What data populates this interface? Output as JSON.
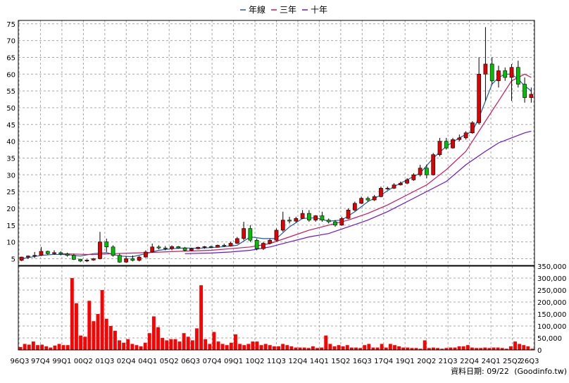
{
  "chart_data": [
    {
      "type": "line",
      "panel": "price-candlestick",
      "legend": [
        {
          "name": "年線",
          "color": "#1e5aa8"
        },
        {
          "name": "三年",
          "color": "#d0145a"
        },
        {
          "name": "十年",
          "color": "#6a14d8"
        }
      ],
      "ytick_labels": [
        "5",
        "10",
        "15",
        "20",
        "25",
        "30",
        "35",
        "40",
        "45",
        "50",
        "55",
        "60",
        "65",
        "70",
        "75"
      ],
      "ylim": [
        3,
        76
      ],
      "xtick_labels": [
        "96Q3",
        "97Q4",
        "99Q1",
        "00Q2",
        "01Q3",
        "02Q4",
        "04Q1",
        "05Q2",
        "06Q3",
        "07Q4",
        "09Q1",
        "10Q2",
        "11Q3",
        "12Q4",
        "14Q1",
        "15Q2",
        "16Q3",
        "17Q4",
        "19Q1",
        "20Q2",
        "21Q3",
        "22Q4",
        "24Q1",
        "25Q2",
        "26Q3"
      ],
      "grid": true,
      "candle_colors": {
        "up": "#e00000",
        "down": "#00c000"
      },
      "candles": [
        [
          4.5,
          5.6,
          4.3,
          5.5
        ],
        [
          5.5,
          6.0,
          5.0,
          5.8
        ],
        [
          5.8,
          7.0,
          5.2,
          6.0
        ],
        [
          6.0,
          8.5,
          5.8,
          7.2
        ],
        [
          7.2,
          7.4,
          6.2,
          6.5
        ],
        [
          6.5,
          7.5,
          6.2,
          6.8
        ],
        [
          6.8,
          7.2,
          6.0,
          6.4
        ],
        [
          6.4,
          6.8,
          5.6,
          6.0
        ],
        [
          6.0,
          6.5,
          4.6,
          4.8
        ],
        [
          4.8,
          5.0,
          4.0,
          4.3
        ],
        [
          4.3,
          4.8,
          4.0,
          4.6
        ],
        [
          4.6,
          5.2,
          4.4,
          5.0
        ],
        [
          5.0,
          13.0,
          4.8,
          10.0
        ],
        [
          10.0,
          11.0,
          7.0,
          8.5
        ],
        [
          8.5,
          9.0,
          5.6,
          6.0
        ],
        [
          6.0,
          6.5,
          3.8,
          4.0
        ],
        [
          4.0,
          5.8,
          3.8,
          5.0
        ],
        [
          5.0,
          6.0,
          4.2,
          4.5
        ],
        [
          4.5,
          5.8,
          4.2,
          5.5
        ],
        [
          5.5,
          7.5,
          5.3,
          7.0
        ],
        [
          7.0,
          9.5,
          6.8,
          8.5
        ],
        [
          8.5,
          9.0,
          7.8,
          8.2
        ],
        [
          8.2,
          8.8,
          7.5,
          8.0
        ],
        [
          8.0,
          9.0,
          7.5,
          8.6
        ],
        [
          8.6,
          8.8,
          8.0,
          8.2
        ],
        [
          8.2,
          8.5,
          7.2,
          7.5
        ],
        [
          7.5,
          8.2,
          7.3,
          8.0
        ],
        [
          8.0,
          8.6,
          7.8,
          8.4
        ],
        [
          8.4,
          8.8,
          8.0,
          8.6
        ],
        [
          8.6,
          8.9,
          8.2,
          8.4
        ],
        [
          8.4,
          9.2,
          8.3,
          9.0
        ],
        [
          9.0,
          9.5,
          8.5,
          8.8
        ],
        [
          8.8,
          10.0,
          8.6,
          9.6
        ],
        [
          9.6,
          11.5,
          9.4,
          11.0
        ],
        [
          11.0,
          16.0,
          10.5,
          14.0
        ],
        [
          14.0,
          15.0,
          10.0,
          10.5
        ],
        [
          10.5,
          11.0,
          7.5,
          8.0
        ],
        [
          8.0,
          10.0,
          7.6,
          9.6
        ],
        [
          9.6,
          11.0,
          9.3,
          10.5
        ],
        [
          10.5,
          14.0,
          10.2,
          13.5
        ],
        [
          13.5,
          19.0,
          13.0,
          16.5
        ],
        [
          16.5,
          17.5,
          15.5,
          16.2
        ],
        [
          16.2,
          17.5,
          15.8,
          17.0
        ],
        [
          17.0,
          19.5,
          16.8,
          18.5
        ],
        [
          18.5,
          19.5,
          16.0,
          16.5
        ],
        [
          16.5,
          18.0,
          16.0,
          17.8
        ],
        [
          17.8,
          19.0,
          16.0,
          16.5
        ],
        [
          16.5,
          17.0,
          15.5,
          16.0
        ],
        [
          16.0,
          16.5,
          14.5,
          15.0
        ],
        [
          15.0,
          17.5,
          14.8,
          17.0
        ],
        [
          17.0,
          20.0,
          16.8,
          19.5
        ],
        [
          19.5,
          22.0,
          19.2,
          21.5
        ],
        [
          21.5,
          23.5,
          21.3,
          23.0
        ],
        [
          23.0,
          23.5,
          22.0,
          22.5
        ],
        [
          22.5,
          24.0,
          22.2,
          23.5
        ],
        [
          23.5,
          26.5,
          23.3,
          26.0
        ],
        [
          26.0,
          26.5,
          25.5,
          26.0
        ],
        [
          26.0,
          27.5,
          25.8,
          27.0
        ],
        [
          27.0,
          28.0,
          26.8,
          27.5
        ],
        [
          27.5,
          29.0,
          27.2,
          28.5
        ],
        [
          28.5,
          30.5,
          28.2,
          30.0
        ],
        [
          30.0,
          33.0,
          29.5,
          32.0
        ],
        [
          32.0,
          33.0,
          29.0,
          30.0
        ],
        [
          30.0,
          36.5,
          29.8,
          36.0
        ],
        [
          36.0,
          41.0,
          35.5,
          40.0
        ],
        [
          40.0,
          41.0,
          37.5,
          38.0
        ],
        [
          38.0,
          41.0,
          37.8,
          40.5
        ],
        [
          40.5,
          42.0,
          40.0,
          41.0
        ],
        [
          41.0,
          43.0,
          40.5,
          42.5
        ],
        [
          42.5,
          46.0,
          42.2,
          45.5
        ],
        [
          45.5,
          65.0,
          45.0,
          60.0
        ],
        [
          60.0,
          74.0,
          52.0,
          63.0
        ],
        [
          63.0,
          65.0,
          57.0,
          58.0
        ],
        [
          58.0,
          62.5,
          56.0,
          61.0
        ],
        [
          61.0,
          62.0,
          58.0,
          59.0
        ],
        [
          59.0,
          63.0,
          52.0,
          62.0
        ],
        [
          62.0,
          64.0,
          56.0,
          57.0
        ],
        [
          57.0,
          59.0,
          51.5,
          53.0
        ],
        [
          53.0,
          56.0,
          51.5,
          54.0
        ]
      ],
      "series": [
        {
          "name": "年線",
          "color": "#1e5aa8",
          "x": [
            1,
            2,
            4,
            6,
            8,
            10,
            12,
            14,
            16,
            18,
            20,
            22,
            24,
            26,
            28,
            30,
            32,
            34,
            36,
            38,
            40,
            42,
            44,
            46,
            48,
            50,
            52,
            54,
            56,
            58,
            60,
            62,
            64,
            66,
            68,
            70,
            71,
            72,
            73,
            74,
            75,
            76,
            77,
            78,
            79
          ],
          "values": [
            5,
            5.3,
            6,
            6.3,
            6.2,
            5.8,
            6.5,
            6.8,
            5.8,
            5.6,
            6.5,
            7.5,
            8,
            8.2,
            8.1,
            8.3,
            8.6,
            9,
            11.5,
            11,
            11,
            14.5,
            17,
            17.2,
            16.2,
            16.5,
            19,
            22,
            24,
            26.5,
            28.5,
            30.5,
            35,
            38.5,
            41,
            43,
            47,
            52,
            57,
            59,
            60,
            60,
            58.5,
            56.5,
            55
          ]
        },
        {
          "name": "三年",
          "color": "#d0145a",
          "x": [
            7,
            12,
            15,
            20,
            25,
            30,
            33,
            36,
            39,
            42,
            45,
            48,
            51,
            54,
            57,
            60,
            63,
            66,
            69,
            70,
            72,
            74,
            76,
            78,
            79
          ],
          "values": [
            6.5,
            6.2,
            6.5,
            6.8,
            7.2,
            7.5,
            8,
            8.5,
            9.5,
            11.5,
            13.5,
            15,
            16.5,
            18.5,
            21,
            24,
            27,
            31.5,
            37,
            40,
            46,
            52,
            58,
            60,
            59
          ]
        },
        {
          "name": "十年",
          "color": "#6a14d8",
          "x": [
            26,
            30,
            33,
            36,
            39,
            42,
            45,
            48,
            51,
            54,
            57,
            60,
            63,
            66,
            69,
            72,
            74,
            76,
            78,
            79
          ],
          "values": [
            6.5,
            6.7,
            7,
            7.5,
            8.5,
            10,
            11.5,
            12.5,
            14.5,
            16.5,
            19,
            22,
            25,
            28,
            33,
            37,
            39.5,
            41,
            42.5,
            43
          ]
        }
      ]
    },
    {
      "type": "bar",
      "panel": "volume",
      "color": "#ff0000",
      "ytick_labels": [
        "0",
        "50,000",
        "100,000",
        "150,000",
        "200,000",
        "250,000",
        "300,000",
        "350,000"
      ],
      "ylim": [
        0,
        350000
      ],
      "values": [
        12000,
        25000,
        22000,
        35000,
        20000,
        22000,
        15000,
        10000,
        18000,
        25000,
        20000,
        20000,
        300000,
        195000,
        60000,
        55000,
        205000,
        120000,
        150000,
        250000,
        130000,
        100000,
        80000,
        40000,
        30000,
        45000,
        25000,
        20000,
        15000,
        30000,
        70000,
        140000,
        95000,
        50000,
        40000,
        45000,
        45000,
        35000,
        70000,
        55000,
        40000,
        90000,
        270000,
        45000,
        25000,
        75000,
        35000,
        25000,
        20000,
        30000,
        65000,
        25000,
        20000,
        25000,
        35000,
        35000,
        20000,
        25000,
        20000,
        15000,
        15000,
        25000,
        20000,
        15000,
        10000,
        10000,
        10000,
        8000,
        15000,
        8000,
        10000,
        60000,
        25000,
        15000,
        20000,
        15000,
        20000,
        10000,
        10000,
        8000,
        20000,
        25000,
        10000,
        10000,
        25000,
        10000,
        25000,
        20000,
        15000,
        10000,
        10000,
        8000,
        8000,
        5000,
        40000,
        8000,
        10000,
        8000,
        5000,
        8000,
        10000,
        10000,
        15000,
        15000,
        20000,
        10000,
        8000,
        8000,
        10000,
        8000,
        10000,
        10000,
        8000,
        5000,
        15000,
        35000,
        25000,
        20000,
        15000,
        5000
      ]
    }
  ],
  "footer": {
    "data_date": "資料日期: 09/22",
    "source": "(Goodinfo.tw)"
  }
}
